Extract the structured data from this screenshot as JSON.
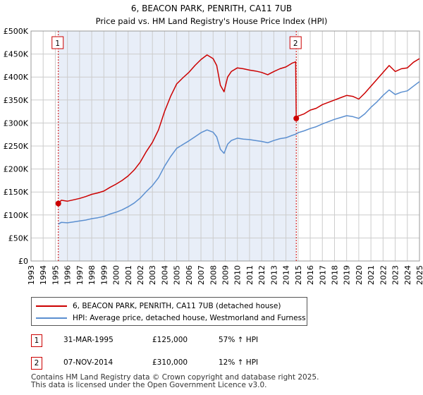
{
  "chart_data": {
    "type": "line",
    "title": "6, BEACON PARK, PENRITH, CA11 7UB",
    "subtitle": "Price paid vs. HM Land Registry's House Price Index (HPI)",
    "xlabel": "",
    "ylabel": "",
    "xlim": [
      1993,
      2025
    ],
    "ylim": [
      0,
      500000
    ],
    "x_ticks": [
      "1993",
      "1994",
      "1995",
      "1996",
      "1997",
      "1998",
      "1999",
      "2000",
      "2001",
      "2002",
      "2003",
      "2004",
      "2005",
      "2006",
      "2007",
      "2008",
      "2009",
      "2010",
      "2011",
      "2012",
      "2013",
      "2014",
      "2015",
      "2016",
      "2017",
      "2018",
      "2019",
      "2020",
      "2021",
      "2022",
      "2023",
      "2024",
      "2025"
    ],
    "y_ticks": [
      {
        "value": 0,
        "label": "£0"
      },
      {
        "value": 50000,
        "label": "£50K"
      },
      {
        "value": 100000,
        "label": "£100K"
      },
      {
        "value": 150000,
        "label": "£150K"
      },
      {
        "value": 200000,
        "label": "£200K"
      },
      {
        "value": 250000,
        "label": "£250K"
      },
      {
        "value": 300000,
        "label": "£300K"
      },
      {
        "value": 350000,
        "label": "£350K"
      },
      {
        "value": 400000,
        "label": "£400K"
      },
      {
        "value": 450000,
        "label": "£450K"
      },
      {
        "value": 500000,
        "label": "£500K"
      }
    ],
    "grid": true,
    "series": [
      {
        "name": "6, BEACON PARK, PENRITH, CA11 7UB (detached house)",
        "color": "#cc0000",
        "x": [
          1995.25,
          1995.5,
          1996,
          1996.5,
          1997,
          1997.5,
          1998,
          1998.5,
          1999,
          1999.5,
          2000,
          2000.5,
          2001,
          2001.5,
          2002,
          2002.5,
          2003,
          2003.5,
          2004,
          2004.5,
          2005,
          2005.5,
          2006,
          2006.5,
          2007,
          2007.5,
          2008,
          2008.3,
          2008.6,
          2008.9,
          2009.2,
          2009.5,
          2010,
          2010.5,
          2011,
          2011.5,
          2012,
          2012.5,
          2013,
          2013.5,
          2014,
          2014.5,
          2014.8,
          2014.85,
          2015,
          2015.5,
          2016,
          2016.5,
          2017,
          2017.5,
          2018,
          2018.5,
          2019,
          2019.5,
          2020,
          2020.5,
          2021,
          2021.5,
          2022,
          2022.5,
          2023,
          2023.5,
          2024,
          2024.5,
          2025
        ],
        "values": [
          125000,
          132000,
          130000,
          133000,
          136000,
          140000,
          145000,
          148000,
          152000,
          160000,
          167000,
          175000,
          185000,
          198000,
          215000,
          238000,
          258000,
          285000,
          325000,
          358000,
          385000,
          398000,
          410000,
          425000,
          438000,
          448000,
          440000,
          425000,
          382000,
          368000,
          400000,
          412000,
          420000,
          418000,
          415000,
          413000,
          410000,
          405000,
          412000,
          418000,
          422000,
          430000,
          433000,
          310000,
          315000,
          320000,
          328000,
          332000,
          340000,
          345000,
          350000,
          355000,
          360000,
          358000,
          352000,
          365000,
          380000,
          395000,
          410000,
          425000,
          412000,
          418000,
          420000,
          432000,
          440000
        ]
      },
      {
        "name": "HPI: Average price, detached house, Westmorland and Furness",
        "color": "#5b8fd0",
        "x": [
          1995.25,
          1995.5,
          1996,
          1996.5,
          1997,
          1997.5,
          1998,
          1998.5,
          1999,
          1999.5,
          2000,
          2000.5,
          2001,
          2001.5,
          2002,
          2002.5,
          2003,
          2003.5,
          2004,
          2004.5,
          2005,
          2005.5,
          2006,
          2006.5,
          2007,
          2007.5,
          2008,
          2008.3,
          2008.6,
          2008.9,
          2009.2,
          2009.5,
          2010,
          2010.5,
          2011,
          2011.5,
          2012,
          2012.5,
          2013,
          2013.5,
          2014,
          2014.5,
          2014.85,
          2015,
          2015.5,
          2016,
          2016.5,
          2017,
          2017.5,
          2018,
          2018.5,
          2019,
          2019.5,
          2020,
          2020.5,
          2021,
          2021.5,
          2022,
          2022.5,
          2023,
          2023.5,
          2024,
          2024.5,
          2025
        ],
        "values": [
          80000,
          84000,
          83000,
          85000,
          87000,
          89000,
          92000,
          94000,
          97000,
          102000,
          106000,
          111000,
          118000,
          126000,
          137000,
          151000,
          164000,
          181000,
          206000,
          227000,
          245000,
          253000,
          261000,
          270000,
          279000,
          285000,
          280000,
          270000,
          243000,
          234000,
          254000,
          262000,
          267000,
          265000,
          264000,
          262000,
          260000,
          257000,
          262000,
          266000,
          268000,
          273000,
          276000,
          279000,
          283000,
          288000,
          292000,
          298000,
          303000,
          308000,
          312000,
          316000,
          314000,
          310000,
          320000,
          334000,
          346000,
          360000,
          372000,
          362000,
          367000,
          370000,
          380000,
          390000
        ]
      }
    ],
    "markers": [
      {
        "id": "1",
        "x": 1995.25,
        "value": 125000
      },
      {
        "id": "2",
        "x": 2014.85,
        "value": 310000
      }
    ]
  },
  "legend": {
    "items": [
      {
        "label": "6, BEACON PARK, PENRITH, CA11 7UB (detached house)",
        "color": "#cc0000"
      },
      {
        "label": "HPI: Average price, detached house, Westmorland and Furness",
        "color": "#5b8fd0"
      }
    ]
  },
  "sales": [
    {
      "id": "1",
      "date": "31-MAR-1995",
      "price": "£125,000",
      "hpi": "57% ↑ HPI"
    },
    {
      "id": "2",
      "date": "07-NOV-2014",
      "price": "£310,000",
      "hpi": "12% ↑ HPI"
    }
  ],
  "footer": {
    "line1": "Contains HM Land Registry data © Crown copyright and database right 2025.",
    "line2": "This data is licensed under the Open Government Licence v3.0."
  }
}
